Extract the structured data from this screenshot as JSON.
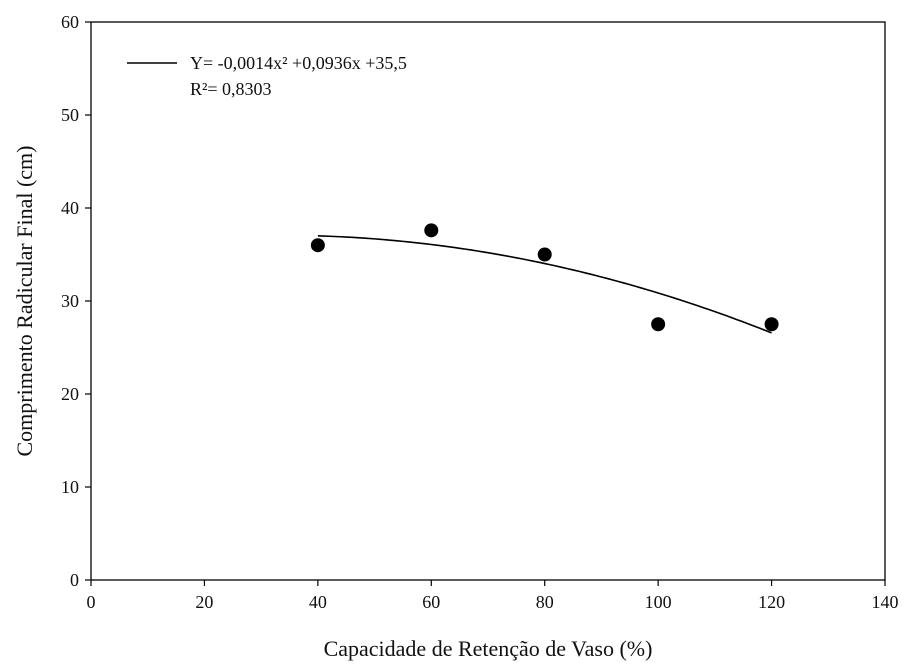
{
  "chart_data": {
    "type": "scatter",
    "xlabel": "Capacidade de Retenção de Vaso (%)",
    "ylabel": "Comprimento Radicular Final (cm)",
    "xlim": [
      0,
      140
    ],
    "ylim": [
      0,
      60
    ],
    "xticks": [
      0,
      20,
      40,
      60,
      80,
      100,
      120,
      140
    ],
    "yticks": [
      0,
      10,
      20,
      30,
      40,
      50,
      60
    ],
    "grid": false,
    "legend_position": "top-left",
    "points": [
      {
        "x": 40,
        "y": 36.0
      },
      {
        "x": 60,
        "y": 37.6
      },
      {
        "x": 80,
        "y": 35.0
      },
      {
        "x": 100,
        "y": 27.5
      },
      {
        "x": 120,
        "y": 27.5
      }
    ],
    "fit": {
      "type": "quadratic",
      "coefficients": {
        "a": -0.0014,
        "b": 0.0936,
        "c": 35.5
      },
      "x_range": [
        40,
        120
      ]
    },
    "equation_label": "Y= -0,0014x² +0,0936x +35,5",
    "r2_label": "R²= 0,8303",
    "colors": {
      "marker": "#000000",
      "line": "#000000"
    }
  }
}
